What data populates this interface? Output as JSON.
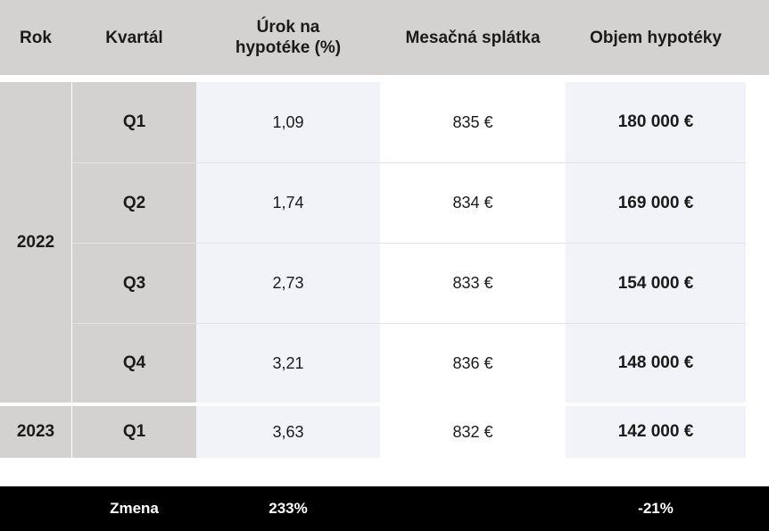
{
  "headers": {
    "rok": "Rok",
    "kvartal": "Kvartál",
    "urok_line1": "Úrok na",
    "urok_line2": "hypotéke (%)",
    "splatka": "Mesačná splátka",
    "objem": "Objem hypotéky"
  },
  "years": [
    "2022",
    "2023"
  ],
  "rows": [
    {
      "quarter": "Q1",
      "rate": "1,09",
      "payment": "835 €",
      "volume": "180 000 €"
    },
    {
      "quarter": "Q2",
      "rate": "1,74",
      "payment": "834 €",
      "volume": "169 000 €"
    },
    {
      "quarter": "Q3",
      "rate": "2,73",
      "payment": "833 €",
      "volume": "154 000 €"
    },
    {
      "quarter": "Q4",
      "rate": "3,21",
      "payment": "836 €",
      "volume": "148 000 €"
    },
    {
      "quarter": "Q1",
      "rate": "3,63",
      "payment": "832 €",
      "volume": "142 000 €"
    }
  ],
  "footer": {
    "label": "Zmena",
    "rate_change": "233%",
    "volume_change": "-21%"
  },
  "colors": {
    "header_bg": "#d4d2d1",
    "alt_col_bg": "#f1f3f8",
    "footer_bg": "#000000"
  }
}
